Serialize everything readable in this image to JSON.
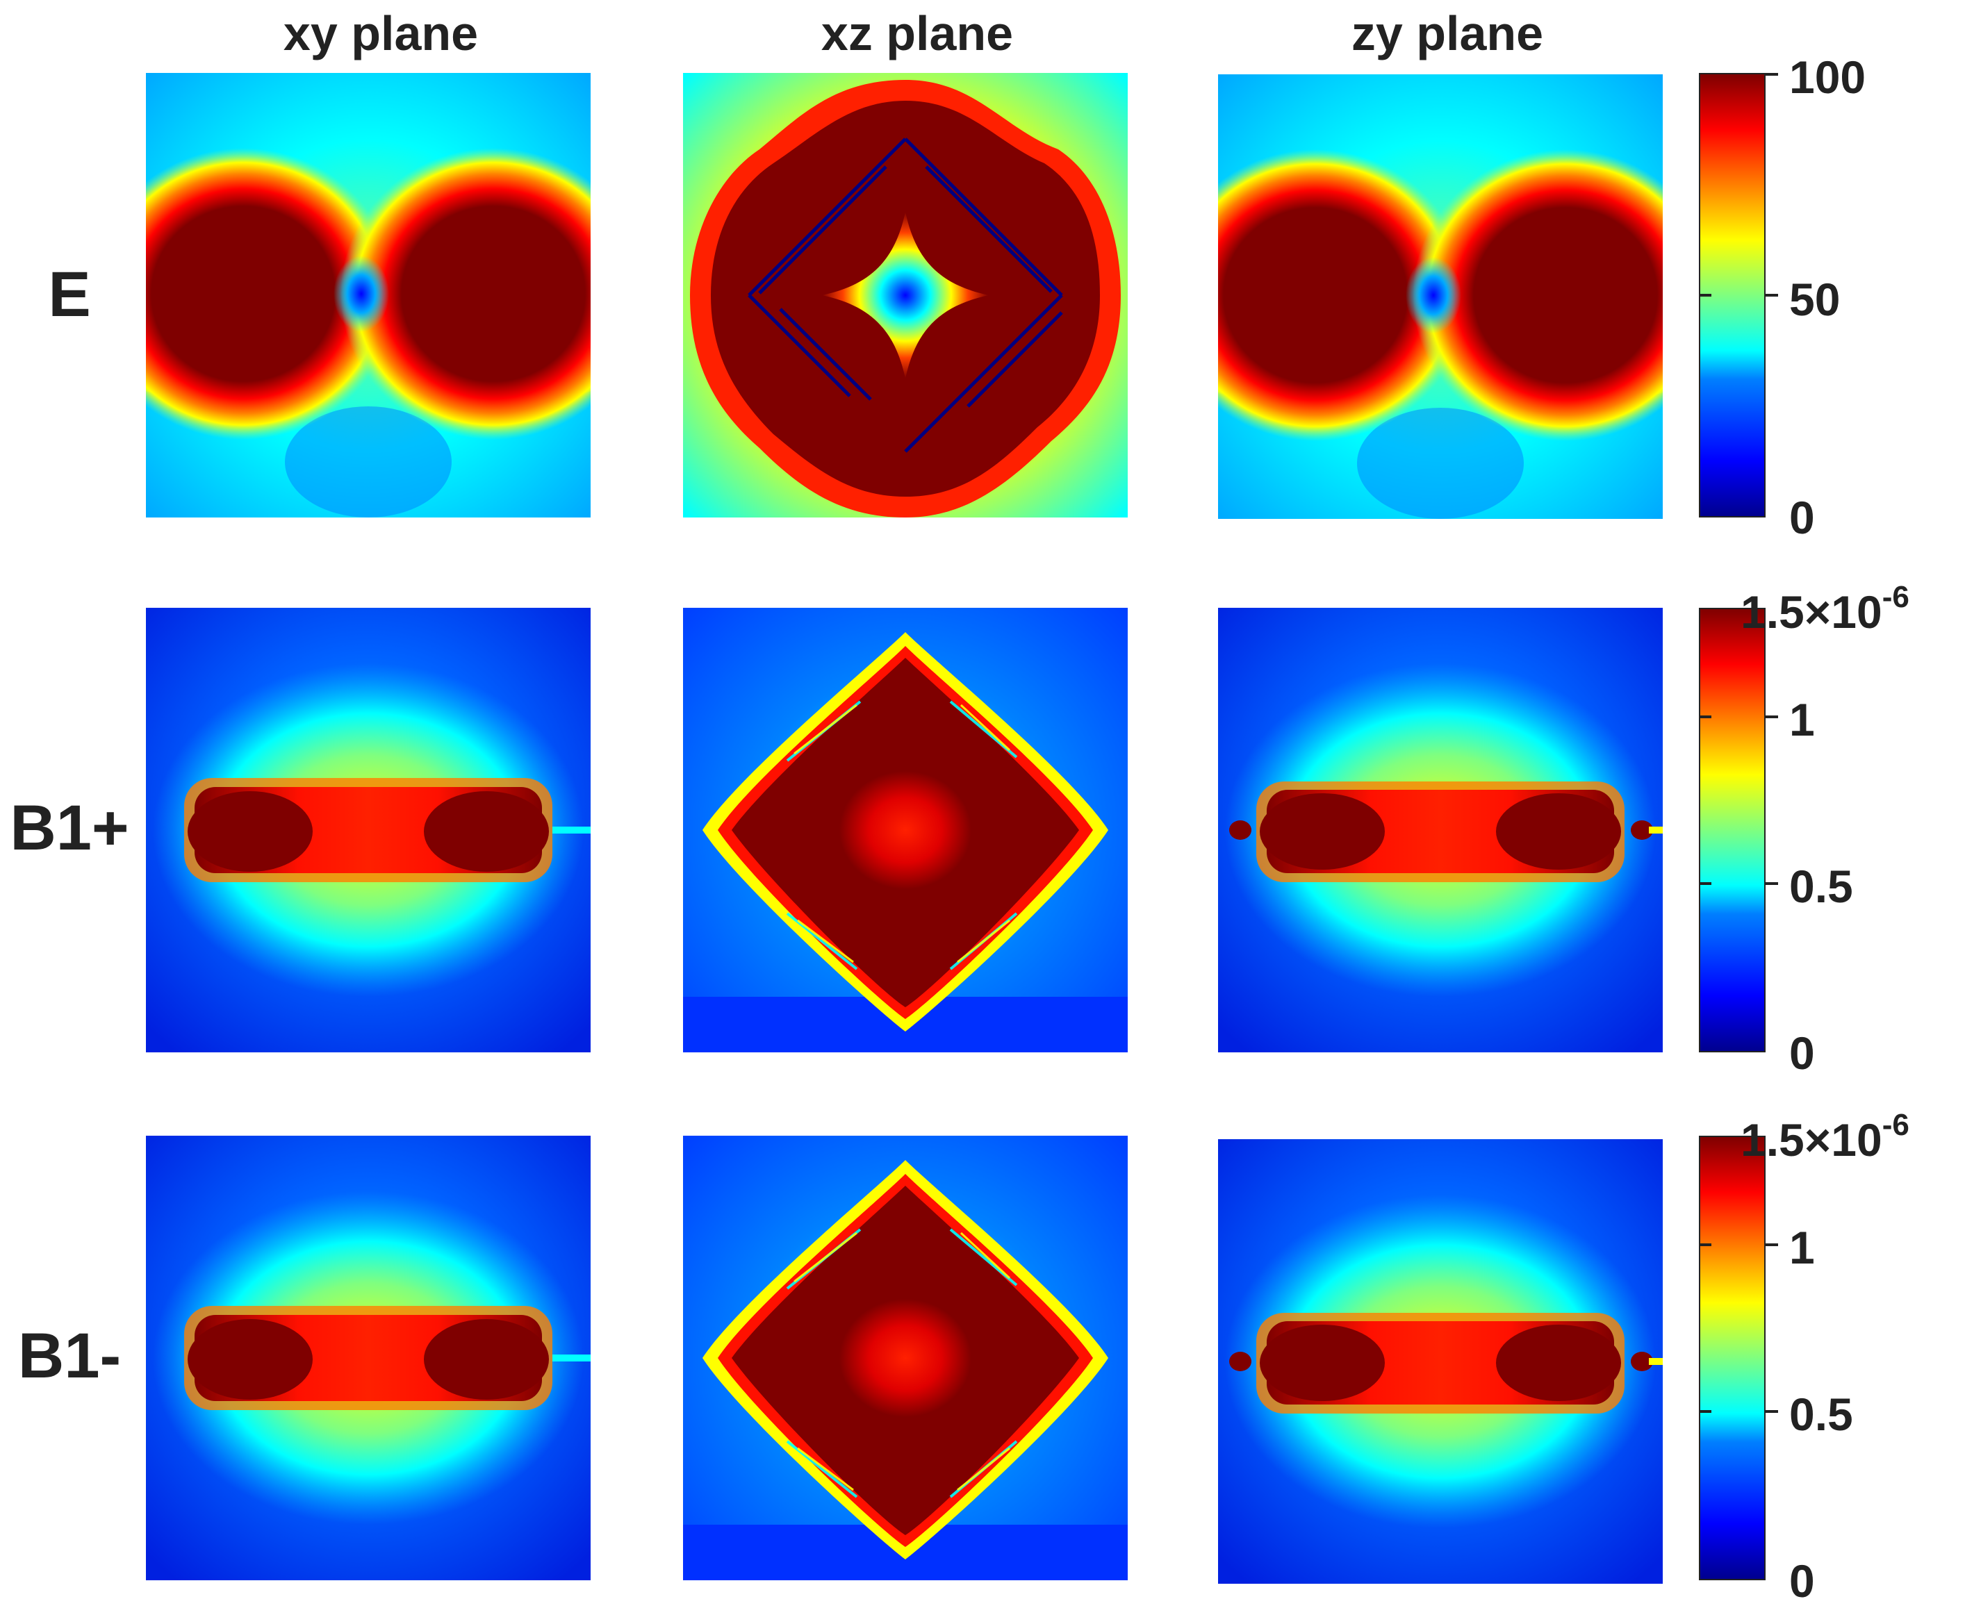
{
  "columns": [
    "xy plane",
    "xz plane",
    "zy plane"
  ],
  "rows": [
    "E",
    "B1+",
    "B1-"
  ],
  "colorbars": [
    {
      "ticks": [
        "100",
        "50",
        "0"
      ]
    },
    {
      "ticks": [
        "1.5×10",
        "1",
        "0.5",
        "0"
      ],
      "top_exponent": "-6"
    },
    {
      "ticks": [
        "1.5×10",
        "1",
        "0.5",
        "0"
      ],
      "top_exponent": "-6"
    }
  ],
  "chart_data": {
    "type": "heatmap",
    "title": "",
    "panels": [
      {
        "row": "E",
        "column": "xy plane",
        "colorbar_range": [
          0,
          100
        ]
      },
      {
        "row": "E",
        "column": "xz plane",
        "colorbar_range": [
          0,
          100
        ]
      },
      {
        "row": "E",
        "column": "zy plane",
        "colorbar_range": [
          0,
          100
        ]
      },
      {
        "row": "B1+",
        "column": "xy plane",
        "colorbar_range": [
          0,
          1.5e-06
        ]
      },
      {
        "row": "B1+",
        "column": "xz plane",
        "colorbar_range": [
          0,
          1.5e-06
        ]
      },
      {
        "row": "B1+",
        "column": "zy plane",
        "colorbar_range": [
          0,
          1.5e-06
        ]
      },
      {
        "row": "B1-",
        "column": "xy plane",
        "colorbar_range": [
          0,
          1.5e-06
        ]
      },
      {
        "row": "B1-",
        "column": "xz plane",
        "colorbar_range": [
          0,
          1.5e-06
        ]
      },
      {
        "row": "B1-",
        "column": "zy plane",
        "colorbar_range": [
          0,
          1.5e-06
        ]
      }
    ],
    "colormap": "jet",
    "colorbars": [
      {
        "row": "E",
        "range": [
          0,
          100
        ],
        "ticks": [
          0,
          50,
          100
        ]
      },
      {
        "row": "B1+",
        "range": [
          0,
          1.5e-06
        ],
        "ticks": [
          0,
          5e-07,
          1e-06,
          1.5e-06
        ]
      },
      {
        "row": "B1-",
        "range": [
          0,
          1.5e-06
        ],
        "ticks": [
          0,
          5e-07,
          1e-06,
          1.5e-06
        ]
      }
    ]
  }
}
